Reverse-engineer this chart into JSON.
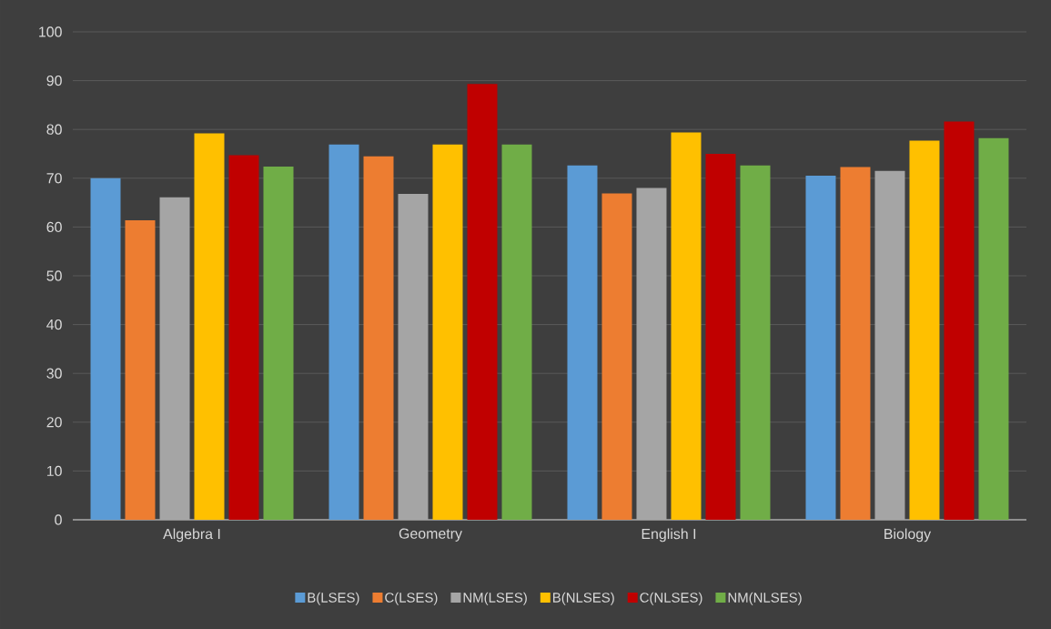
{
  "chart_data": {
    "type": "bar",
    "categories": [
      "Algebra I",
      "Geometry",
      "English I",
      "Biology"
    ],
    "series": [
      {
        "name": "B(LSES)",
        "color": "#5b9bd5",
        "values": [
          70.0,
          76.9,
          72.6,
          70.5
        ]
      },
      {
        "name": "C(LSES)",
        "color": "#ed7d31",
        "values": [
          61.4,
          74.5,
          66.9,
          72.3
        ]
      },
      {
        "name": "NM(LSES)",
        "color": "#a5a5a5",
        "values": [
          66.1,
          66.8,
          68.0,
          71.5
        ]
      },
      {
        "name": "B(NLSES)",
        "color": "#ffc000",
        "values": [
          79.2,
          76.9,
          79.4,
          77.7
        ]
      },
      {
        "name": "C(NLSES)",
        "color": "#c00000",
        "values": [
          74.7,
          89.3,
          75.0,
          81.6
        ]
      },
      {
        "name": "NM(NLSES)",
        "color": "#70ad47",
        "values": [
          72.4,
          76.9,
          72.6,
          78.2
        ]
      }
    ],
    "ylim": [
      0,
      100
    ],
    "yticks": [
      0,
      10,
      20,
      30,
      40,
      50,
      60,
      70,
      80,
      90,
      100
    ],
    "grid": "y",
    "legend": "bottom"
  }
}
